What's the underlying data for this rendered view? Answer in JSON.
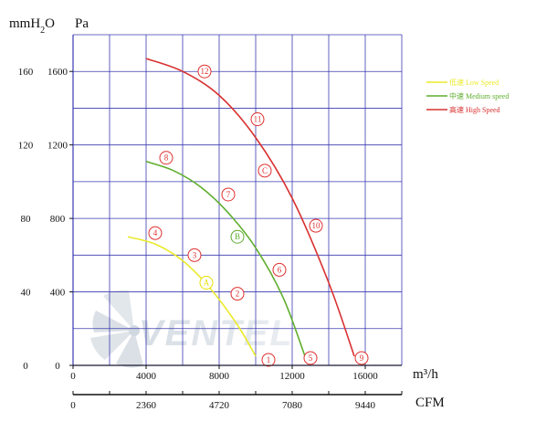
{
  "chart_data": {
    "type": "line",
    "y_units": {
      "left": "mmH2O",
      "right": "Pa"
    },
    "x_units": {
      "primary": "m³/h",
      "secondary": "CFM"
    },
    "x_axis_primary": {
      "range": [
        0,
        18000
      ],
      "ticks": [
        0,
        4000,
        8000,
        12000,
        16000
      ]
    },
    "x_axis_secondary": {
      "ticks": [
        0,
        2360,
        4720,
        7080,
        9440
      ]
    },
    "y_axis": {
      "range": [
        0,
        180
      ],
      "ticks_mmh2o": [
        0,
        40,
        80,
        120,
        160
      ],
      "ticks_pa": [
        0,
        400,
        800,
        1200,
        1600
      ]
    },
    "grid": true,
    "legend_position": "top-right",
    "watermark": "VENTEL",
    "series": [
      {
        "name": "低速 Low Speed",
        "key": "low",
        "color": "#eaea2a",
        "x": [
          3000,
          4500,
          6000,
          7500,
          9000,
          10000
        ],
        "y": [
          70,
          66,
          57,
          42,
          22,
          5
        ]
      },
      {
        "name": "中速 Medium speed",
        "key": "medium",
        "color": "#5fae2e",
        "x": [
          4000,
          5500,
          7000,
          8500,
          10000,
          11500,
          12700
        ],
        "y": [
          111,
          106,
          97,
          83,
          64,
          37,
          5
        ]
      },
      {
        "name": "高速 High Speed",
        "key": "high",
        "color": "#d93030",
        "x": [
          4000,
          6000,
          8000,
          10000,
          12000,
          14000,
          15400
        ],
        "y": [
          167,
          160,
          147,
          124,
          91,
          45,
          5
        ]
      }
    ],
    "markers": [
      {
        "label": "1",
        "x": 10700,
        "y": 3,
        "color": "#e03030"
      },
      {
        "label": "2",
        "x": 9000,
        "y": 39,
        "color": "#e03030"
      },
      {
        "label": "3",
        "x": 6650,
        "y": 60,
        "color": "#e03030"
      },
      {
        "label": "4",
        "x": 4500,
        "y": 72,
        "color": "#e03030"
      },
      {
        "label": "5",
        "x": 13000,
        "y": 4,
        "color": "#e03030"
      },
      {
        "label": "6",
        "x": 11300,
        "y": 52,
        "color": "#e03030"
      },
      {
        "label": "7",
        "x": 8500,
        "y": 93,
        "color": "#e03030"
      },
      {
        "label": "8",
        "x": 5100,
        "y": 113,
        "color": "#e03030"
      },
      {
        "label": "9",
        "x": 15800,
        "y": 4,
        "color": "#e03030"
      },
      {
        "label": "10",
        "x": 13300,
        "y": 76,
        "color": "#e03030"
      },
      {
        "label": "11",
        "x": 10100,
        "y": 134,
        "color": "#e03030"
      },
      {
        "label": "12",
        "x": 7200,
        "y": 160,
        "color": "#e03030"
      },
      {
        "label": "A",
        "x": 7300,
        "y": 45,
        "color": "#e8e000"
      },
      {
        "label": "B",
        "x": 9000,
        "y": 70,
        "color": "#5fae2e"
      },
      {
        "label": "C",
        "x": 10500,
        "y": 106,
        "color": "#e03030"
      }
    ]
  }
}
